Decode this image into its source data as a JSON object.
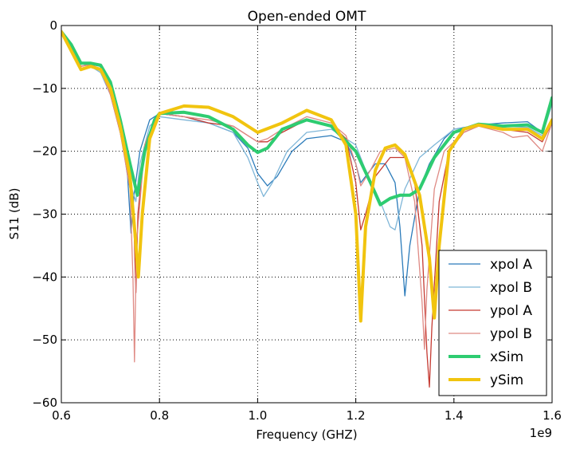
{
  "chart_data": {
    "type": "line",
    "title": "Open-ended OMT",
    "xlabel": "Frequency (GHZ)",
    "ylabel": "S11 (dB)",
    "x_offset_label": "1e9",
    "xlim": [
      0.6,
      1.6
    ],
    "ylim": [
      -60,
      0
    ],
    "xticks": [
      0.6,
      0.8,
      1.0,
      1.2,
      1.4,
      1.6
    ],
    "xtick_labels": [
      "0.6",
      "0.8",
      "1.0",
      "1.2",
      "1.4",
      "1.6"
    ],
    "yticks": [
      0,
      -10,
      -20,
      -30,
      -40,
      -50,
      -60
    ],
    "ytick_labels": [
      "0",
      "−10",
      "−20",
      "−30",
      "−40",
      "−50",
      "−60"
    ],
    "grid": true,
    "legend_position": "lower-right",
    "series": [
      {
        "name": "xpol A",
        "color": "#2b7bba",
        "points": [
          [
            0.6,
            -1
          ],
          [
            0.62,
            -3
          ],
          [
            0.64,
            -6
          ],
          [
            0.66,
            -6.2
          ],
          [
            0.68,
            -6.5
          ],
          [
            0.7,
            -10
          ],
          [
            0.72,
            -16
          ],
          [
            0.735,
            -24
          ],
          [
            0.742,
            -33
          ],
          [
            0.748,
            -27
          ],
          [
            0.76,
            -20
          ],
          [
            0.78,
            -15
          ],
          [
            0.8,
            -14
          ],
          [
            0.85,
            -14.5
          ],
          [
            0.9,
            -15.5
          ],
          [
            0.95,
            -17
          ],
          [
            0.98,
            -19.5
          ],
          [
            1.0,
            -23.5
          ],
          [
            1.02,
            -25.5
          ],
          [
            1.04,
            -24
          ],
          [
            1.07,
            -20
          ],
          [
            1.1,
            -18
          ],
          [
            1.15,
            -17.5
          ],
          [
            1.18,
            -18.5
          ],
          [
            1.2,
            -22
          ],
          [
            1.21,
            -25
          ],
          [
            1.22,
            -24
          ],
          [
            1.24,
            -22
          ],
          [
            1.26,
            -22
          ],
          [
            1.28,
            -25
          ],
          [
            1.29,
            -32
          ],
          [
            1.3,
            -43
          ],
          [
            1.31,
            -35
          ],
          [
            1.33,
            -26
          ],
          [
            1.35,
            -22
          ],
          [
            1.38,
            -18
          ],
          [
            1.4,
            -16.5
          ],
          [
            1.45,
            -15.8
          ],
          [
            1.5,
            -15.5
          ],
          [
            1.55,
            -15.3
          ],
          [
            1.58,
            -17
          ],
          [
            1.6,
            -12
          ]
        ]
      },
      {
        "name": "xpol B",
        "color": "#7fb6d8",
        "points": [
          [
            0.6,
            -1
          ],
          [
            0.62,
            -3
          ],
          [
            0.64,
            -6
          ],
          [
            0.66,
            -6.5
          ],
          [
            0.68,
            -7.5
          ],
          [
            0.7,
            -11
          ],
          [
            0.72,
            -17
          ],
          [
            0.74,
            -25
          ],
          [
            0.752,
            -28
          ],
          [
            0.76,
            -22
          ],
          [
            0.78,
            -16
          ],
          [
            0.8,
            -14.5
          ],
          [
            0.85,
            -15
          ],
          [
            0.9,
            -15.5
          ],
          [
            0.95,
            -17
          ],
          [
            0.98,
            -21
          ],
          [
            1.0,
            -25
          ],
          [
            1.012,
            -27.2
          ],
          [
            1.03,
            -25
          ],
          [
            1.06,
            -20
          ],
          [
            1.1,
            -17
          ],
          [
            1.15,
            -16.5
          ],
          [
            1.2,
            -19
          ],
          [
            1.22,
            -23
          ],
          [
            1.25,
            -28
          ],
          [
            1.27,
            -32
          ],
          [
            1.28,
            -32.5
          ],
          [
            1.3,
            -26
          ],
          [
            1.33,
            -21
          ],
          [
            1.36,
            -19
          ],
          [
            1.4,
            -16.5
          ],
          [
            1.45,
            -16
          ],
          [
            1.5,
            -16
          ],
          [
            1.55,
            -16.2
          ],
          [
            1.58,
            -17.5
          ],
          [
            1.6,
            -12.5
          ]
        ]
      },
      {
        "name": "ypol A",
        "color": "#c53a32",
        "points": [
          [
            0.6,
            -1
          ],
          [
            0.62,
            -3.5
          ],
          [
            0.64,
            -6.5
          ],
          [
            0.66,
            -6.2
          ],
          [
            0.68,
            -7
          ],
          [
            0.7,
            -11
          ],
          [
            0.72,
            -17
          ],
          [
            0.74,
            -25
          ],
          [
            0.748,
            -32
          ],
          [
            0.752,
            -42.5
          ],
          [
            0.756,
            -30
          ],
          [
            0.77,
            -19
          ],
          [
            0.79,
            -15
          ],
          [
            0.8,
            -14
          ],
          [
            0.85,
            -14.5
          ],
          [
            0.9,
            -15.5
          ],
          [
            0.95,
            -16
          ],
          [
            0.98,
            -17.5
          ],
          [
            1.0,
            -18.5
          ],
          [
            1.02,
            -18.5
          ],
          [
            1.05,
            -17
          ],
          [
            1.1,
            -15
          ],
          [
            1.15,
            -15.8
          ],
          [
            1.18,
            -18
          ],
          [
            1.2,
            -25
          ],
          [
            1.21,
            -32.5
          ],
          [
            1.22,
            -30
          ],
          [
            1.24,
            -24
          ],
          [
            1.27,
            -21
          ],
          [
            1.3,
            -21
          ],
          [
            1.32,
            -25
          ],
          [
            1.335,
            -35
          ],
          [
            1.345,
            -52
          ],
          [
            1.35,
            -57.5
          ],
          [
            1.355,
            -48
          ],
          [
            1.37,
            -28
          ],
          [
            1.39,
            -20
          ],
          [
            1.42,
            -17
          ],
          [
            1.45,
            -16
          ],
          [
            1.5,
            -16.5
          ],
          [
            1.55,
            -17
          ],
          [
            1.58,
            -18.5
          ],
          [
            1.6,
            -15.5
          ]
        ]
      },
      {
        "name": "ypol B",
        "color": "#df8a84",
        "points": [
          [
            0.6,
            -1
          ],
          [
            0.62,
            -3.5
          ],
          [
            0.64,
            -6.5
          ],
          [
            0.66,
            -6.2
          ],
          [
            0.68,
            -7
          ],
          [
            0.7,
            -11
          ],
          [
            0.72,
            -17
          ],
          [
            0.74,
            -26
          ],
          [
            0.746,
            -40
          ],
          [
            0.749,
            -53.5
          ],
          [
            0.753,
            -35
          ],
          [
            0.77,
            -19
          ],
          [
            0.79,
            -15
          ],
          [
            0.8,
            -14
          ],
          [
            0.85,
            -14.5
          ],
          [
            0.9,
            -15
          ],
          [
            0.95,
            -16
          ],
          [
            0.98,
            -17.5
          ],
          [
            1.0,
            -18.5
          ],
          [
            1.02,
            -18
          ],
          [
            1.05,
            -16.5
          ],
          [
            1.1,
            -14.5
          ],
          [
            1.15,
            -15.5
          ],
          [
            1.18,
            -17.5
          ],
          [
            1.2,
            -22
          ],
          [
            1.21,
            -25.5
          ],
          [
            1.23,
            -23
          ],
          [
            1.25,
            -20
          ],
          [
            1.28,
            -19.5
          ],
          [
            1.3,
            -21
          ],
          [
            1.32,
            -28
          ],
          [
            1.335,
            -44
          ],
          [
            1.34,
            -51.5
          ],
          [
            1.345,
            -42
          ],
          [
            1.36,
            -26
          ],
          [
            1.38,
            -20
          ],
          [
            1.42,
            -17
          ],
          [
            1.45,
            -16
          ],
          [
            1.5,
            -17
          ],
          [
            1.52,
            -17.8
          ],
          [
            1.55,
            -17.5
          ],
          [
            1.58,
            -20
          ],
          [
            1.6,
            -15.5
          ]
        ]
      },
      {
        "name": "xSim",
        "color": "#2ecc71",
        "points": [
          [
            0.6,
            -1
          ],
          [
            0.62,
            -3
          ],
          [
            0.64,
            -6
          ],
          [
            0.66,
            -6
          ],
          [
            0.68,
            -6.3
          ],
          [
            0.7,
            -9
          ],
          [
            0.72,
            -15
          ],
          [
            0.74,
            -22
          ],
          [
            0.755,
            -27
          ],
          [
            0.77,
            -20
          ],
          [
            0.79,
            -15
          ],
          [
            0.8,
            -14
          ],
          [
            0.85,
            -13.8
          ],
          [
            0.9,
            -14.5
          ],
          [
            0.95,
            -16.5
          ],
          [
            0.98,
            -19
          ],
          [
            1.0,
            -20.2
          ],
          [
            1.02,
            -19.5
          ],
          [
            1.05,
            -16.5
          ],
          [
            1.1,
            -15
          ],
          [
            1.15,
            -16
          ],
          [
            1.2,
            -20
          ],
          [
            1.23,
            -25
          ],
          [
            1.25,
            -28.5
          ],
          [
            1.27,
            -27.5
          ],
          [
            1.29,
            -27
          ],
          [
            1.31,
            -27
          ],
          [
            1.33,
            -26
          ],
          [
            1.36,
            -21
          ],
          [
            1.4,
            -17
          ],
          [
            1.45,
            -15.7
          ],
          [
            1.5,
            -16
          ],
          [
            1.55,
            -15.8
          ],
          [
            1.58,
            -17
          ],
          [
            1.6,
            -11.5
          ]
        ]
      },
      {
        "name": "ySim",
        "color": "#f1c40f",
        "points": [
          [
            0.6,
            -1
          ],
          [
            0.62,
            -4
          ],
          [
            0.64,
            -7
          ],
          [
            0.66,
            -6.5
          ],
          [
            0.68,
            -7
          ],
          [
            0.7,
            -10
          ],
          [
            0.72,
            -16
          ],
          [
            0.74,
            -24
          ],
          [
            0.75,
            -33
          ],
          [
            0.757,
            -40
          ],
          [
            0.765,
            -30
          ],
          [
            0.78,
            -18
          ],
          [
            0.8,
            -14
          ],
          [
            0.85,
            -12.8
          ],
          [
            0.9,
            -13
          ],
          [
            0.95,
            -14.5
          ],
          [
            1.0,
            -17
          ],
          [
            1.05,
            -15.5
          ],
          [
            1.1,
            -13.5
          ],
          [
            1.15,
            -15
          ],
          [
            1.18,
            -19
          ],
          [
            1.2,
            -30
          ],
          [
            1.21,
            -47
          ],
          [
            1.22,
            -32
          ],
          [
            1.24,
            -23
          ],
          [
            1.26,
            -19.5
          ],
          [
            1.28,
            -19
          ],
          [
            1.3,
            -20.5
          ],
          [
            1.33,
            -27
          ],
          [
            1.35,
            -37
          ],
          [
            1.36,
            -46.5
          ],
          [
            1.37,
            -35
          ],
          [
            1.39,
            -20
          ],
          [
            1.42,
            -16.5
          ],
          [
            1.45,
            -15.8
          ],
          [
            1.5,
            -16.5
          ],
          [
            1.55,
            -16.5
          ],
          [
            1.58,
            -18
          ],
          [
            1.6,
            -15
          ]
        ]
      }
    ]
  }
}
